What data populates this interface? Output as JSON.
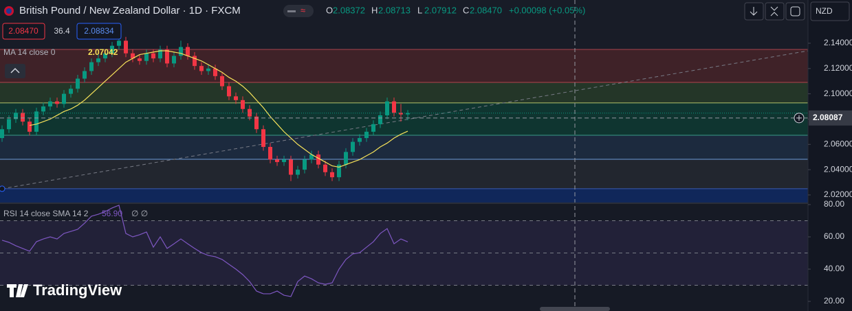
{
  "header": {
    "symbol": "British Pound / New Zealand Dollar · 1D · FXCM",
    "ohlc": [
      {
        "k": "O",
        "v": "2.08372"
      },
      {
        "k": "H",
        "v": "2.08713"
      },
      {
        "k": "L",
        "v": "2.07912"
      },
      {
        "k": "C",
        "v": "2.08470"
      }
    ],
    "change": "+0.00098 (+0.05%)",
    "boxes": [
      "2.08470",
      "36.4",
      "2.08834"
    ],
    "currency": "NZD",
    "logo": "TradingView"
  },
  "chart_data": [
    {
      "type": "candlestick",
      "title": "British Pound / New Zealand Dollar · 1D · FXCM",
      "up_color": "#089981",
      "down_color": "#f23645",
      "open": [
        2.065,
        2.072,
        2.08,
        2.085,
        2.078,
        2.07,
        2.086,
        2.09,
        2.094,
        2.092,
        2.1,
        2.104,
        2.112,
        2.118,
        2.125,
        2.128,
        2.132,
        2.138,
        2.142,
        2.132,
        2.128,
        2.126,
        2.132,
        2.128,
        2.135,
        2.124,
        2.13,
        2.137,
        2.13,
        2.122,
        2.118,
        2.12,
        2.114,
        2.106,
        2.098,
        2.095,
        2.088,
        2.082,
        2.072,
        2.058,
        2.048,
        2.046,
        2.048,
        2.036,
        2.04,
        2.048,
        2.052,
        2.044,
        2.038,
        2.034,
        2.044,
        2.054,
        2.062,
        2.065,
        2.07,
        2.076,
        2.083,
        2.094,
        2.085,
        2.08372
      ],
      "high": [
        2.075,
        2.083,
        2.088,
        2.088,
        2.081,
        2.089,
        2.093,
        2.097,
        2.097,
        2.103,
        2.107,
        2.115,
        2.121,
        2.128,
        2.131,
        2.135,
        2.141,
        2.148,
        2.145,
        2.135,
        2.131,
        2.135,
        2.135,
        2.138,
        2.138,
        2.133,
        2.142,
        2.14,
        2.133,
        2.125,
        2.123,
        2.123,
        2.117,
        2.109,
        2.101,
        2.098,
        2.091,
        2.085,
        2.075,
        2.061,
        2.051,
        2.051,
        2.051,
        2.043,
        2.051,
        2.055,
        2.055,
        2.047,
        2.041,
        2.047,
        2.057,
        2.065,
        2.068,
        2.073,
        2.079,
        2.086,
        2.097,
        2.097,
        2.092,
        2.08713
      ],
      "low": [
        2.062,
        2.069,
        2.077,
        2.075,
        2.067,
        2.067,
        2.083,
        2.087,
        2.089,
        2.089,
        2.097,
        2.101,
        2.109,
        2.115,
        2.122,
        2.125,
        2.129,
        2.135,
        2.129,
        2.125,
        2.123,
        2.123,
        2.125,
        2.125,
        2.121,
        2.121,
        2.127,
        2.127,
        2.119,
        2.115,
        2.115,
        2.111,
        2.103,
        2.095,
        2.092,
        2.085,
        2.079,
        2.069,
        2.055,
        2.045,
        2.043,
        2.043,
        2.031,
        2.033,
        2.037,
        2.045,
        2.041,
        2.035,
        2.031,
        2.031,
        2.041,
        2.051,
        2.059,
        2.062,
        2.067,
        2.073,
        2.08,
        2.082,
        2.078,
        2.07912
      ],
      "close": [
        2.072,
        2.08,
        2.085,
        2.078,
        2.07,
        2.086,
        2.09,
        2.094,
        2.092,
        2.1,
        2.104,
        2.112,
        2.118,
        2.125,
        2.128,
        2.132,
        2.138,
        2.142,
        2.132,
        2.128,
        2.126,
        2.132,
        2.128,
        2.135,
        2.124,
        2.13,
        2.137,
        2.13,
        2.122,
        2.118,
        2.12,
        2.114,
        2.106,
        2.098,
        2.095,
        2.088,
        2.082,
        2.072,
        2.058,
        2.048,
        2.046,
        2.048,
        2.036,
        2.04,
        2.048,
        2.052,
        2.044,
        2.038,
        2.034,
        2.044,
        2.054,
        2.062,
        2.065,
        2.07,
        2.076,
        2.083,
        2.094,
        2.085,
        2.0837,
        2.0847
      ],
      "ma": {
        "name": "MA 14 close 0",
        "color": "#f7e35a",
        "values": [
          null,
          null,
          null,
          null,
          2.075,
          2.076,
          2.078,
          2.08,
          2.083,
          2.086,
          2.088,
          2.091,
          2.095,
          2.1,
          2.105,
          2.11,
          2.115,
          2.12,
          2.125,
          2.128,
          2.131,
          2.132,
          2.133,
          2.134,
          2.134,
          2.133,
          2.132,
          2.13,
          2.128,
          2.126,
          2.123,
          2.12,
          2.117,
          2.113,
          2.11,
          2.106,
          2.101,
          2.095,
          2.089,
          2.082,
          2.076,
          2.07,
          2.065,
          2.06,
          2.056,
          2.052,
          2.049,
          2.046,
          2.043,
          2.042,
          2.044,
          2.046,
          2.048,
          2.051,
          2.054,
          2.058,
          2.061,
          2.065,
          2.068,
          2.07042
        ]
      },
      "ylim": [
        2.014,
        2.1742
      ],
      "yticks": [
        {
          "value": 2.02,
          "label": "2.02000"
        },
        {
          "value": 2.04,
          "label": "2.04000"
        },
        {
          "value": 2.06,
          "label": "2.06000"
        },
        {
          "value": 2.08,
          "label": "2.08000"
        },
        {
          "value": 2.1,
          "label": "2.10000"
        },
        {
          "value": 2.12,
          "label": "2.12000"
        },
        {
          "value": 2.14,
          "label": "2.14000"
        }
      ],
      "zones": [
        {
          "from": 2.1351,
          "to": 2.109,
          "fill": "#3f2228",
          "line": "#a8434d"
        },
        {
          "from": 2.109,
          "to": 2.0928,
          "fill": "#243628",
          "line": "#b3434d"
        },
        {
          "from": 2.0928,
          "to": 2.0672,
          "fill": "#0f3530",
          "line": "#b5c46a"
        },
        {
          "from": 2.0672,
          "to": 2.0482,
          "fill": "#1c2a3e",
          "line": "#3a9a88"
        },
        {
          "from": 2.0482,
          "to": 2.0249,
          "fill": "#22262f",
          "line": "#6a9ad8"
        },
        {
          "from": 2.0249,
          "to": 2.014,
          "fill": "#10275a",
          "line": "#3a5ab0"
        }
      ],
      "trendline": {
        "x": [
          0,
          117.2
        ],
        "values": [
          2.0249,
          2.134
        ],
        "color": "#787b86"
      },
      "crosshair": {
        "x": 83.3,
        "price": 2.08087
      }
    },
    {
      "type": "line",
      "name": "RSI 14 close SMA 14 2",
      "color": "#7e57c2",
      "values": [
        57.9,
        56.6,
        54.5,
        52.8,
        51.1,
        57.0,
        58.7,
        60.0,
        58.7,
        62.1,
        63.4,
        64.7,
        68.5,
        72.8,
        74.0,
        75.7,
        77.9,
        79.6,
        62.1,
        60.0,
        61.3,
        63.0,
        53.6,
        60.0,
        52.8,
        55.7,
        58.7,
        55.7,
        52.8,
        50.2,
        48.5,
        47.7,
        46.0,
        43.0,
        40.0,
        36.6,
        32.3,
        26.4,
        24.7,
        24.7,
        26.4,
        23.8,
        23.0,
        32.3,
        35.7,
        34.0,
        31.5,
        30.6,
        31.5,
        40.0,
        46.0,
        49.4,
        50.2,
        53.6,
        57.0,
        62.1,
        65.1,
        55.7,
        58.7,
        56.9
      ],
      "last_value_label": "56.90",
      "extra": "∅ ∅",
      "ylim": [
        14.04,
        80.43
      ],
      "yticks": [
        {
          "value": 20,
          "label": "20.00"
        },
        {
          "value": 40,
          "label": "40.00"
        },
        {
          "value": 60,
          "label": "60.00"
        },
        {
          "value": 80,
          "label": "80.00"
        }
      ],
      "levels": [
        70,
        50,
        30
      ]
    }
  ]
}
